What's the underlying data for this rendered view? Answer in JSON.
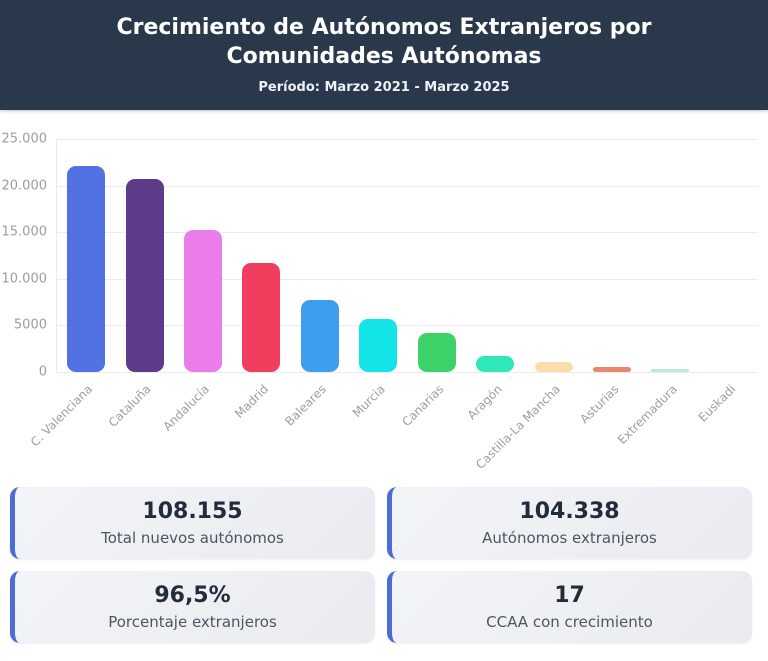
{
  "header": {
    "title": "Crecimiento de Autónomos Extranjeros por Comunidades Autónomas",
    "subtitle": "Período: Marzo 2021 - Marzo 2025"
  },
  "chart_data": {
    "type": "bar",
    "title": "Crecimiento de Autónomos Extranjeros por Comunidades Autónomas",
    "xlabel": "",
    "ylabel": "",
    "ylim": [
      0,
      25000
    ],
    "grid": true,
    "legend": false,
    "categories": [
      "C. Valenciana",
      "Cataluña",
      "Andalucía",
      "Madrid",
      "Baleares",
      "Murcia",
      "Canarias",
      "Aragón",
      "Castilla-La Mancha",
      "Asturias",
      "Extremadura",
      "Euskadi"
    ],
    "values": [
      22100,
      20700,
      15200,
      11700,
      7700,
      5650,
      4150,
      1700,
      1050,
      500,
      280,
      50
    ],
    "colors": [
      "#5272e4",
      "#5e3b8a",
      "#ea7de9",
      "#f23e5e",
      "#3b9ef0",
      "#12e4e8",
      "#3dd16a",
      "#2ee8b8",
      "#fbdcab",
      "#e9886c",
      "#bfe6e3",
      "#d8eef0"
    ],
    "yticks": [
      {
        "value": 25000,
        "label": "25.000"
      },
      {
        "value": 20000,
        "label": "20.000"
      },
      {
        "value": 15000,
        "label": "15.000"
      },
      {
        "value": 10000,
        "label": "10.000"
      },
      {
        "value": 5000,
        "label": "5000"
      },
      {
        "value": 0,
        "label": "0"
      }
    ]
  },
  "stats": [
    {
      "value": "108.155",
      "label": "Total nuevos autónomos"
    },
    {
      "value": "104.338",
      "label": "Autónomos extranjeros"
    },
    {
      "value": "96,5%",
      "label": "Porcentaje extranjeros"
    },
    {
      "value": "17",
      "label": "CCAA con crecimiento"
    }
  ],
  "theme": {
    "header_bg": "#2a384c",
    "card_accent": "#4d6bd6"
  }
}
